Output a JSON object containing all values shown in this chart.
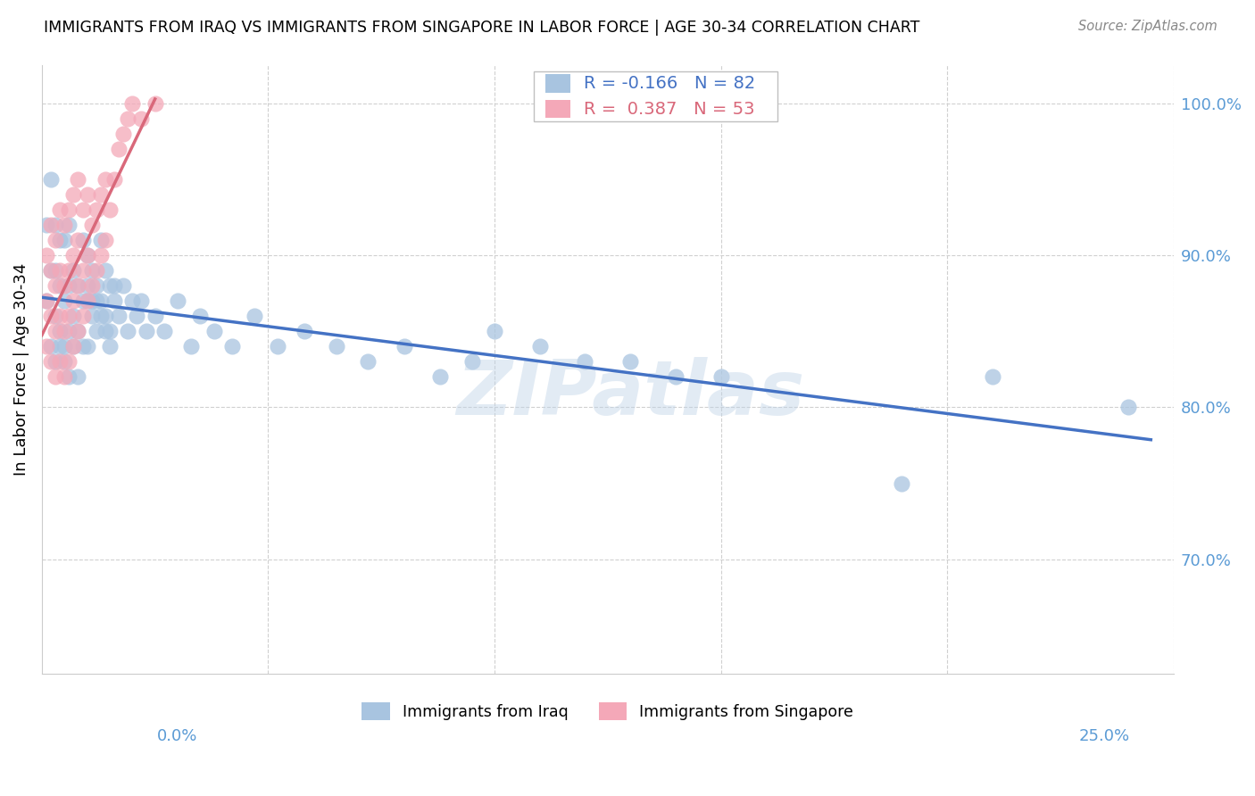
{
  "title": "IMMIGRANTS FROM IRAQ VS IMMIGRANTS FROM SINGAPORE IN LABOR FORCE | AGE 30-34 CORRELATION CHART",
  "source": "Source: ZipAtlas.com",
  "ylabel": "In Labor Force | Age 30-34",
  "xmin": 0.0,
  "xmax": 0.25,
  "ymin": 0.625,
  "ymax": 1.025,
  "yticks": [
    0.7,
    0.8,
    0.9,
    1.0
  ],
  "ytick_labels": [
    "70.0%",
    "80.0%",
    "90.0%",
    "100.0%"
  ],
  "legend_iraq_r": "-0.166",
  "legend_iraq_n": "82",
  "legend_singapore_r": "0.387",
  "legend_singapore_n": "53",
  "color_iraq_fill": "#a8c4e0",
  "color_singapore_fill": "#f4a8b8",
  "color_iraq_line": "#4472c4",
  "color_singapore_line": "#d9687a",
  "color_axis_labels": "#5b9bd5",
  "watermark": "ZIPatlas",
  "iraq_x": [
    0.001,
    0.001,
    0.002,
    0.002,
    0.003,
    0.003,
    0.003,
    0.004,
    0.004,
    0.004,
    0.005,
    0.005,
    0.005,
    0.006,
    0.006,
    0.006,
    0.007,
    0.007,
    0.008,
    0.008,
    0.009,
    0.009,
    0.01,
    0.01,
    0.01,
    0.011,
    0.011,
    0.012,
    0.012,
    0.013,
    0.013,
    0.014,
    0.014,
    0.015,
    0.015,
    0.016,
    0.017,
    0.018,
    0.019,
    0.02,
    0.021,
    0.022,
    0.023,
    0.025,
    0.027,
    0.03,
    0.033,
    0.035,
    0.038,
    0.042,
    0.047,
    0.052,
    0.058,
    0.065,
    0.072,
    0.08,
    0.088,
    0.095,
    0.1,
    0.11,
    0.12,
    0.13,
    0.14,
    0.15,
    0.19,
    0.21,
    0.24,
    0.002,
    0.003,
    0.004,
    0.005,
    0.006,
    0.007,
    0.008,
    0.009,
    0.01,
    0.011,
    0.012,
    0.013,
    0.014,
    0.015,
    0.016
  ],
  "iraq_y": [
    0.87,
    0.92,
    0.89,
    0.95,
    0.86,
    0.89,
    0.92,
    0.85,
    0.88,
    0.91,
    0.84,
    0.87,
    0.91,
    0.85,
    0.88,
    0.92,
    0.86,
    0.89,
    0.85,
    0.88,
    0.87,
    0.91,
    0.84,
    0.87,
    0.9,
    0.86,
    0.89,
    0.85,
    0.88,
    0.87,
    0.91,
    0.86,
    0.89,
    0.85,
    0.88,
    0.87,
    0.86,
    0.88,
    0.85,
    0.87,
    0.86,
    0.87,
    0.85,
    0.86,
    0.85,
    0.87,
    0.84,
    0.86,
    0.85,
    0.84,
    0.86,
    0.84,
    0.85,
    0.84,
    0.83,
    0.84,
    0.82,
    0.83,
    0.85,
    0.84,
    0.83,
    0.83,
    0.82,
    0.82,
    0.75,
    0.82,
    0.8,
    0.84,
    0.83,
    0.84,
    0.83,
    0.82,
    0.84,
    0.82,
    0.84,
    0.88,
    0.87,
    0.87,
    0.86,
    0.85,
    0.84,
    0.88
  ],
  "singapore_x": [
    0.001,
    0.001,
    0.001,
    0.002,
    0.002,
    0.002,
    0.002,
    0.003,
    0.003,
    0.003,
    0.003,
    0.004,
    0.004,
    0.004,
    0.004,
    0.005,
    0.005,
    0.005,
    0.005,
    0.006,
    0.006,
    0.006,
    0.006,
    0.007,
    0.007,
    0.007,
    0.007,
    0.008,
    0.008,
    0.008,
    0.008,
    0.009,
    0.009,
    0.009,
    0.01,
    0.01,
    0.01,
    0.011,
    0.011,
    0.012,
    0.012,
    0.013,
    0.013,
    0.014,
    0.014,
    0.015,
    0.016,
    0.017,
    0.018,
    0.019,
    0.02,
    0.022,
    0.025
  ],
  "singapore_y": [
    0.84,
    0.87,
    0.9,
    0.83,
    0.86,
    0.89,
    0.92,
    0.82,
    0.85,
    0.88,
    0.91,
    0.83,
    0.86,
    0.89,
    0.93,
    0.82,
    0.85,
    0.88,
    0.92,
    0.83,
    0.86,
    0.89,
    0.93,
    0.84,
    0.87,
    0.9,
    0.94,
    0.85,
    0.88,
    0.91,
    0.95,
    0.86,
    0.89,
    0.93,
    0.87,
    0.9,
    0.94,
    0.88,
    0.92,
    0.89,
    0.93,
    0.9,
    0.94,
    0.91,
    0.95,
    0.93,
    0.95,
    0.97,
    0.98,
    0.99,
    1.0,
    0.99,
    1.0
  ],
  "iraq_line_x": [
    0.0,
    0.245
  ],
  "singapore_line_x": [
    0.0,
    0.025
  ]
}
